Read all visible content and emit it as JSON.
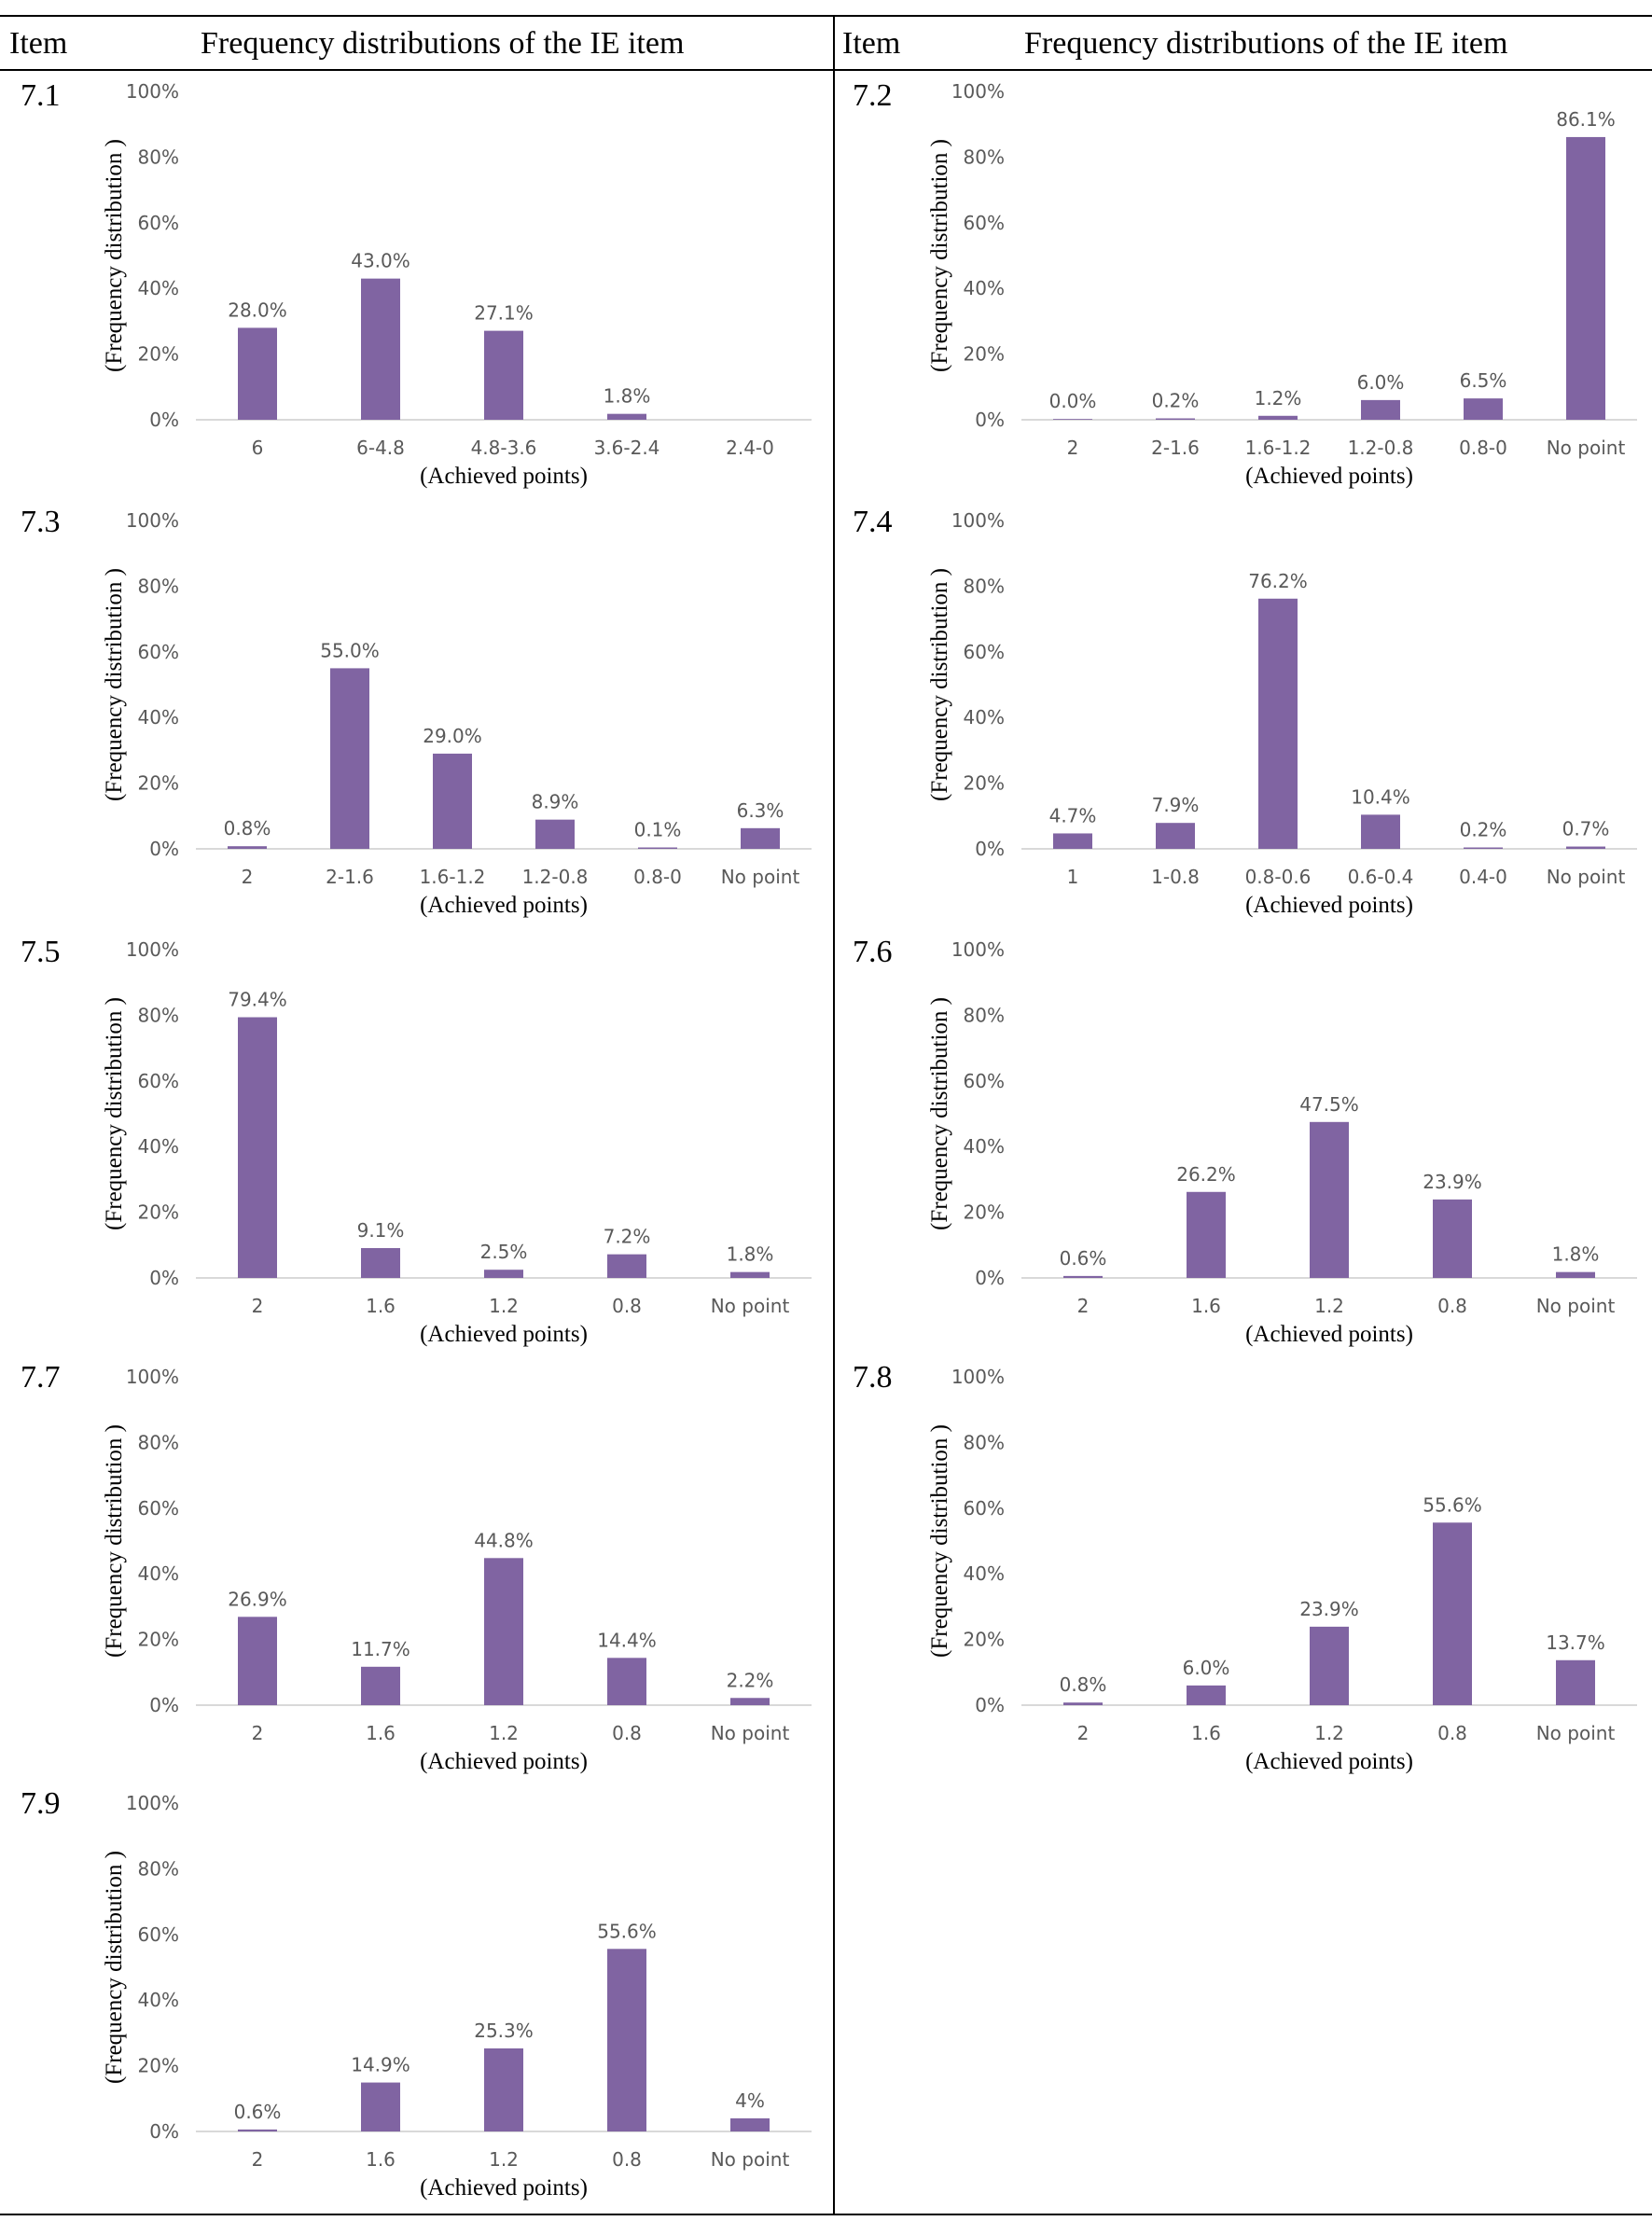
{
  "table": {
    "header": {
      "item_left": "Item",
      "title_left": "Frequency distributions of the IE item",
      "item_right": "Item",
      "title_right": "Frequency distributions of the IE item"
    }
  },
  "colors": {
    "bar": "#8064a2",
    "axis": "#d9d9d9",
    "label": "#595959"
  },
  "chart_data": [
    {
      "item": "7.1",
      "type": "bar",
      "categories": [
        "6",
        "6-4.8",
        "4.8-3.6",
        "3.6-2.4",
        "2.4-0"
      ],
      "values": [
        28.0,
        43.0,
        27.1,
        1.8,
        null
      ],
      "labels": [
        "28.0%",
        "43.0%",
        "27.1%",
        "1.8%",
        ""
      ],
      "xlabel": "(Achieved points)",
      "ylabel": "(Frequency distribution )",
      "ylim": [
        0,
        100
      ],
      "yticks": [
        "0%",
        "20%",
        "40%",
        "60%",
        "80%",
        "100%"
      ],
      "grid": false
    },
    {
      "item": "7.2",
      "type": "bar",
      "categories": [
        "2",
        "2-1.6",
        "1.6-1.2",
        "1.2-0.8",
        "0.8-0",
        "No point"
      ],
      "values": [
        0.0,
        0.2,
        1.2,
        6.0,
        6.5,
        86.1
      ],
      "labels": [
        "0.0%",
        "0.2%",
        "1.2%",
        "6.0%",
        "6.5%",
        "86.1%"
      ],
      "xlabel": "(Achieved points)",
      "ylabel": "(Frequency distribution )",
      "ylim": [
        0,
        100
      ],
      "yticks": [
        "0%",
        "20%",
        "40%",
        "60%",
        "80%",
        "100%"
      ],
      "grid": false
    },
    {
      "item": "7.3",
      "type": "bar",
      "categories": [
        "2",
        "2-1.6",
        "1.6-1.2",
        "1.2-0.8",
        "0.8-0",
        "No point"
      ],
      "values": [
        0.8,
        55.0,
        29.0,
        8.9,
        0.1,
        6.3
      ],
      "labels": [
        "0.8%",
        "55.0%",
        "29.0%",
        "8.9%",
        "0.1%",
        "6.3%"
      ],
      "xlabel": "(Achieved points)",
      "ylabel": "(Frequency distribution )",
      "ylim": [
        0,
        100
      ],
      "yticks": [
        "0%",
        "20%",
        "40%",
        "60%",
        "80%",
        "100%"
      ],
      "grid": false
    },
    {
      "item": "7.4",
      "type": "bar",
      "categories": [
        "1",
        "1-0.8",
        "0.8-0.6",
        "0.6-0.4",
        "0.4-0",
        "No point"
      ],
      "values": [
        4.7,
        7.9,
        76.2,
        10.4,
        0.2,
        0.7
      ],
      "labels": [
        "4.7%",
        "7.9%",
        "76.2%",
        "10.4%",
        "0.2%",
        "0.7%"
      ],
      "xlabel": "(Achieved points)",
      "ylabel": "(Frequency distribution )",
      "ylim": [
        0,
        100
      ],
      "yticks": [
        "0%",
        "20%",
        "40%",
        "60%",
        "80%",
        "100%"
      ],
      "grid": false
    },
    {
      "item": "7.5",
      "type": "bar",
      "categories": [
        "2",
        "1.6",
        "1.2",
        "0.8",
        "No point"
      ],
      "values": [
        79.4,
        9.1,
        2.5,
        7.2,
        1.8
      ],
      "labels": [
        "79.4%",
        "9.1%",
        "2.5%",
        "7.2%",
        "1.8%"
      ],
      "xlabel": "(Achieved points)",
      "ylabel": "(Frequency distribution )",
      "ylim": [
        0,
        100
      ],
      "yticks": [
        "0%",
        "20%",
        "40%",
        "60%",
        "80%",
        "100%"
      ],
      "grid": false
    },
    {
      "item": "7.6",
      "type": "bar",
      "categories": [
        "2",
        "1.6",
        "1.2",
        "0.8",
        "No point"
      ],
      "values": [
        0.6,
        26.2,
        47.5,
        23.9,
        1.8
      ],
      "labels": [
        "0.6%",
        "26.2%",
        "47.5%",
        "23.9%",
        "1.8%"
      ],
      "xlabel": "(Achieved points)",
      "ylabel": "(Frequency distribution )",
      "ylim": [
        0,
        100
      ],
      "yticks": [
        "0%",
        "20%",
        "40%",
        "60%",
        "80%",
        "100%"
      ],
      "grid": false
    },
    {
      "item": "7.7",
      "type": "bar",
      "categories": [
        "2",
        "1.6",
        "1.2",
        "0.8",
        "No point"
      ],
      "values": [
        26.9,
        11.7,
        44.8,
        14.4,
        2.2
      ],
      "labels": [
        "26.9%",
        "11.7%",
        "44.8%",
        "14.4%",
        "2.2%"
      ],
      "xlabel": "(Achieved points)",
      "ylabel": "(Frequency distribution )",
      "ylim": [
        0,
        100
      ],
      "yticks": [
        "0%",
        "20%",
        "40%",
        "60%",
        "80%",
        "100%"
      ],
      "grid": false
    },
    {
      "item": "7.8",
      "type": "bar",
      "categories": [
        "2",
        "1.6",
        "1.2",
        "0.8",
        "No point"
      ],
      "values": [
        0.8,
        6.0,
        23.9,
        55.6,
        13.7
      ],
      "labels": [
        "0.8%",
        "6.0%",
        "23.9%",
        "55.6%",
        "13.7%"
      ],
      "xlabel": "(Achieved points)",
      "ylabel": "(Frequency distribution )",
      "ylim": [
        0,
        100
      ],
      "yticks": [
        "0%",
        "20%",
        "40%",
        "60%",
        "80%",
        "100%"
      ],
      "grid": false
    },
    {
      "item": "7.9",
      "type": "bar",
      "categories": [
        "2",
        "1.6",
        "1.2",
        "0.8",
        "No point"
      ],
      "values": [
        0.6,
        14.9,
        25.3,
        55.6,
        4
      ],
      "labels": [
        "0.6%",
        "14.9%",
        "25.3%",
        "55.6%",
        "4%"
      ],
      "xlabel": "(Achieved points)",
      "ylabel": "(Frequency distribution )",
      "ylim": [
        0,
        100
      ],
      "yticks": [
        "0%",
        "20%",
        "40%",
        "60%",
        "80%",
        "100%"
      ],
      "grid": false
    }
  ]
}
